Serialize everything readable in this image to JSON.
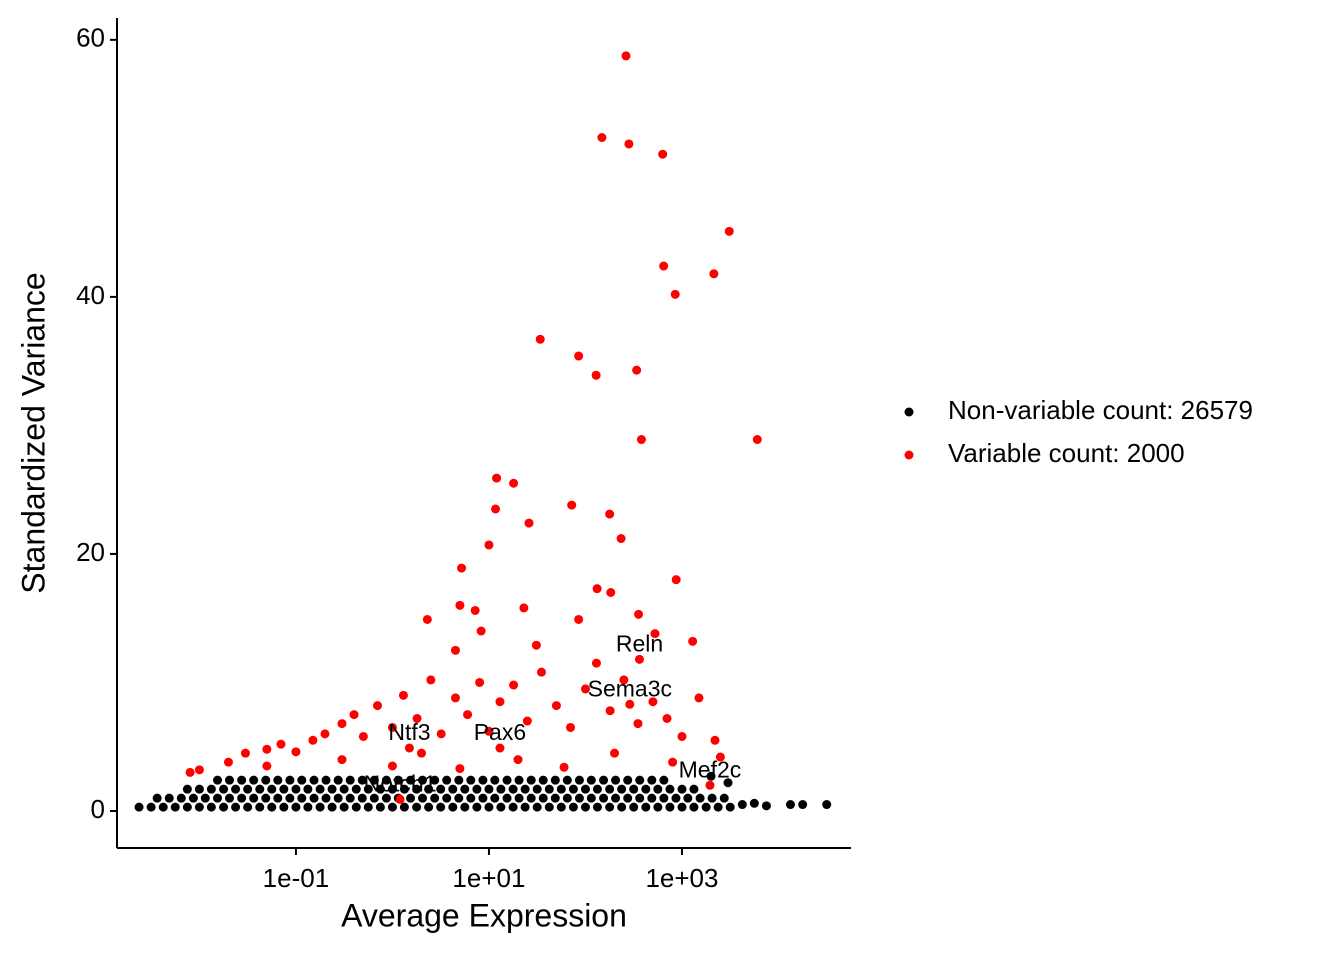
{
  "chart_data": {
    "type": "scatter",
    "xlabel": "Average Expression",
    "ylabel": "Standardized Variance",
    "xscale": "log",
    "xlim": [
      0.0014,
      56400
    ],
    "ylim": [
      -2.88,
      61.7
    ],
    "xticks": [
      {
        "value": 0.1,
        "label": "1e-01"
      },
      {
        "value": 10,
        "label": "1e+01"
      },
      {
        "value": 1000,
        "label": "1e+03"
      }
    ],
    "yticks": [
      0,
      20,
      40,
      60
    ],
    "legend": "right",
    "grid": false,
    "series": [
      {
        "name": "Variable count: 2000",
        "color": "#ff0000",
        "x": [
          263,
          148,
          282,
          631,
          3090,
          646,
          2140,
          851,
          34,
          85,
          129,
          339,
          6030,
          380,
          12,
          18,
          11.7,
          72,
          178,
          26,
          234,
          10,
          871,
          5.2,
          132,
          183,
          5,
          7.2,
          23,
          2.3,
          85,
          355,
          8.3,
          525,
          1290,
          31,
          4.5,
          0.01,
          0.02,
          0.03,
          0.05,
          0.07,
          0.1,
          0.15,
          0.2,
          0.3,
          0.4,
          0.5,
          0.7,
          1.0,
          1.3,
          1.8,
          2.5,
          3.2,
          4.5,
          6,
          8,
          10,
          13,
          18,
          25,
          35,
          50,
          70,
          100,
          130,
          180,
          250,
          350,
          500,
          700,
          1000,
          1500,
          2200,
          2500,
          0.008,
          0.05,
          0.3,
          2,
          20,
          200,
          800,
          1,
          5,
          60
        ],
        "values": [
          58.75,
          52.4,
          51.9,
          51.1,
          45.1,
          42.4,
          41.8,
          40.2,
          36.7,
          35.4,
          33.9,
          34.3,
          28.9,
          28.9,
          25.9,
          25.5,
          23.5,
          23.8,
          23.1,
          22.4,
          21.2,
          20.7,
          18.0,
          18.9,
          17.3,
          17.0,
          16.0,
          15.6,
          15.8,
          14.9,
          14.9,
          15.3,
          14.0,
          13.8,
          13.2,
          12.9,
          12.5,
          3.2,
          3.8,
          4.5,
          4.8,
          5.2,
          4.6,
          5.5,
          6.0,
          6.8,
          7.5,
          5.8,
          8.2,
          6.5,
          9.0,
          7.2,
          10.2,
          6.0,
          8.8,
          7.5,
          10,
          6.2,
          8.5,
          9.8,
          7.0,
          10.8,
          8.2,
          6.5,
          9.5,
          11.5,
          7.8,
          10.2,
          6.8,
          8.5,
          7.2,
          5.8,
          8.8,
          5.5,
          4.2,
          3.0,
          3.5,
          4.0,
          4.5,
          4.0,
          4.5,
          3.8,
          3.5,
          3.3,
          3.4
        ]
      },
      {
        "name": "Non-variable count: 26579",
        "color": "#000000",
        "x": [
          0.00237,
          0.00316,
          0.00422,
          0.00562,
          0.0075,
          0.01,
          0.0133,
          0.0178,
          0.0237,
          0.0316,
          0.0422,
          0.0562,
          0.075,
          0.1,
          0.133,
          0.178,
          0.237,
          0.316,
          0.422,
          0.562,
          0.75,
          1,
          1.33,
          1.78,
          2.37,
          3.16,
          4.22,
          5.62,
          7.5,
          10,
          13.3,
          17.8,
          23.7,
          31.6,
          42.2,
          56.2,
          75,
          100,
          133,
          178,
          237,
          316,
          422,
          562,
          750,
          1000,
          1330,
          1780,
          2370,
          3160,
          0.00365,
          0.00487,
          0.00649,
          0.00866,
          0.0115,
          0.0154,
          0.0205,
          0.0274,
          0.0365,
          0.0487,
          0.0649,
          0.0866,
          0.115,
          0.154,
          0.205,
          0.274,
          0.365,
          0.487,
          0.649,
          0.866,
          1.15,
          1.54,
          2.05,
          2.74,
          3.65,
          4.87,
          6.49,
          8.66,
          11.5,
          15.4,
          20.5,
          27.4,
          36.5,
          48.7,
          64.9,
          86.6,
          115,
          154,
          205,
          274,
          365,
          487,
          649,
          866,
          1150,
          1540,
          2050,
          2740,
          0.0075,
          0.01,
          0.0133,
          0.0178,
          0.0237,
          0.0316,
          0.0422,
          0.0562,
          0.075,
          0.1,
          0.133,
          0.178,
          0.237,
          0.316,
          0.422,
          0.562,
          0.75,
          1,
          1.33,
          1.78,
          2.37,
          3.16,
          4.22,
          5.62,
          7.5,
          10,
          13.3,
          17.8,
          23.7,
          31.6,
          42.2,
          56.2,
          75,
          100,
          133,
          178,
          237,
          316,
          422,
          562,
          750,
          1000,
          1330,
          0.0154,
          0.0205,
          0.0274,
          0.0365,
          0.0487,
          0.0649,
          0.0866,
          0.115,
          0.154,
          0.205,
          0.274,
          0.365,
          0.487,
          0.649,
          0.866,
          1.15,
          1.54,
          2.05,
          2.74,
          3.65,
          4.87,
          6.49,
          8.66,
          11.5,
          15.4,
          20.5,
          27.4,
          36.5,
          48.7,
          64.9,
          86.6,
          115,
          154,
          205,
          274,
          365,
          487,
          649,
          4220,
          5620,
          7500,
          13300,
          17800,
          31600,
          2000,
          3000
        ],
        "values": [
          0.3,
          0.3,
          0.3,
          0.3,
          0.3,
          0.3,
          0.3,
          0.3,
          0.3,
          0.3,
          0.3,
          0.3,
          0.3,
          0.3,
          0.3,
          0.3,
          0.3,
          0.3,
          0.3,
          0.3,
          0.3,
          0.3,
          0.3,
          0.3,
          0.3,
          0.3,
          0.3,
          0.3,
          0.3,
          0.3,
          0.3,
          0.3,
          0.3,
          0.3,
          0.3,
          0.3,
          0.3,
          0.3,
          0.3,
          0.3,
          0.3,
          0.3,
          0.3,
          0.3,
          0.3,
          0.3,
          0.3,
          0.3,
          0.3,
          0.3,
          1.0,
          1.0,
          1.0,
          1.0,
          1.0,
          1.0,
          1.0,
          1.0,
          1.0,
          1.0,
          1.0,
          1.0,
          1.0,
          1.0,
          1.0,
          1.0,
          1.0,
          1.0,
          1.0,
          1.0,
          1.0,
          1.0,
          1.0,
          1.0,
          1.0,
          1.0,
          1.0,
          1.0,
          1.0,
          1.0,
          1.0,
          1.0,
          1.0,
          1.0,
          1.0,
          1.0,
          1.0,
          1.0,
          1.0,
          1.0,
          1.0,
          1.0,
          1.0,
          1.0,
          1.0,
          1.0,
          1.0,
          1.0,
          1.7,
          1.7,
          1.7,
          1.7,
          1.7,
          1.7,
          1.7,
          1.7,
          1.7,
          1.7,
          1.7,
          1.7,
          1.7,
          1.7,
          1.7,
          1.7,
          1.7,
          1.7,
          1.7,
          1.7,
          1.7,
          1.7,
          1.7,
          1.7,
          1.7,
          1.7,
          1.7,
          1.7,
          1.7,
          1.7,
          1.7,
          1.7,
          1.7,
          1.7,
          1.7,
          1.7,
          1.7,
          1.7,
          1.7,
          1.7,
          1.7,
          1.7,
          1.7,
          2.4,
          2.4,
          2.4,
          2.4,
          2.4,
          2.4,
          2.4,
          2.4,
          2.4,
          2.4,
          2.4,
          2.4,
          2.4,
          2.4,
          2.4,
          2.4,
          2.4,
          2.4,
          2.4,
          2.4,
          2.4,
          2.4,
          2.4,
          2.4,
          2.4,
          2.4,
          2.4,
          2.4,
          2.4,
          2.4,
          2.4,
          2.4,
          2.4,
          2.4,
          2.4,
          2.4,
          2.4,
          2.4,
          0.5,
          0.6,
          0.4,
          0.5,
          0.5,
          0.5,
          2.7,
          2.2
        ]
      }
    ],
    "annotations": [
      {
        "text": "Reln",
        "x": 363,
        "y": 11.8
      },
      {
        "text": "Sema3c",
        "x": 288,
        "y": 8.3
      },
      {
        "text": "Pax6",
        "x": 13,
        "y": 4.9
      },
      {
        "text": "Ntf3",
        "x": 1.5,
        "y": 4.9
      },
      {
        "text": "Notch1",
        "x": 1.2,
        "y": 0.9
      },
      {
        "text": "Mef2c",
        "x": 1950,
        "y": 2.0
      }
    ]
  }
}
